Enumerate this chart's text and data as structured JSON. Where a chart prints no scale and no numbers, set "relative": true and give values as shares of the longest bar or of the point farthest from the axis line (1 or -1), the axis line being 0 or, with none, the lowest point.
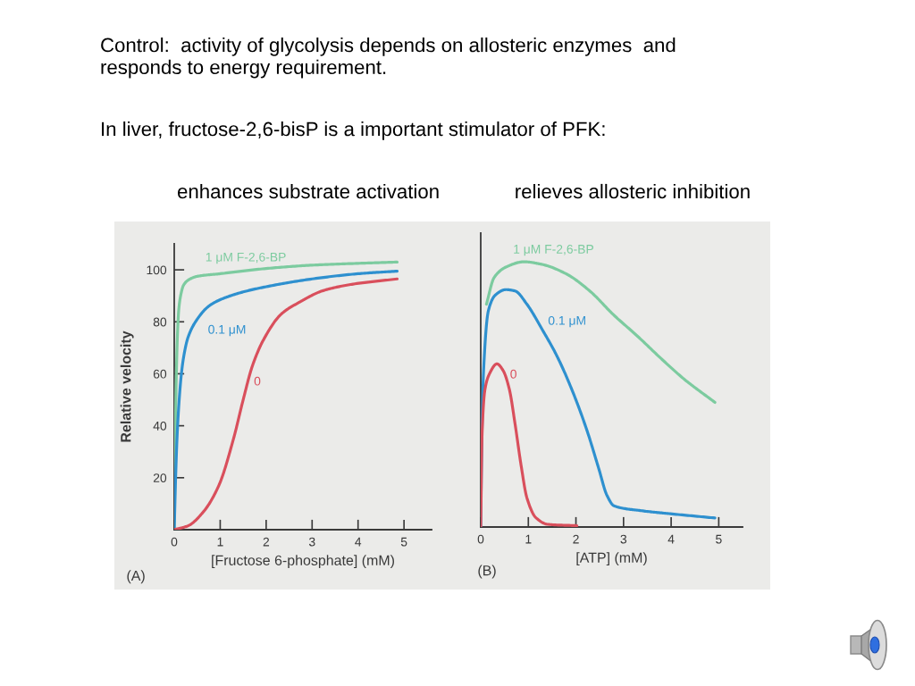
{
  "chart_data": [
    {
      "type": "line",
      "title": "enhances substrate activation",
      "xlabel": "[Fructose 6-phosphate] (mM)",
      "ylabel": "Relative velocity",
      "annotations": [
        "Control:  activity of glycolysis depends on allosteric enzymes  and\nresponds to energy requirement.",
        "In liver, fructose-2,6-bisP is a important stimulator of PFK:",
        "(A)"
      ],
      "xlim": [
        0,
        5.6
      ],
      "ylim": [
        0,
        110
      ],
      "xticks": [
        0,
        1,
        2,
        3,
        4,
        5
      ],
      "yticks": [
        20,
        40,
        60,
        80,
        100
      ],
      "series": [
        {
          "name": "1 μM F-2,6-BP",
          "color": "#7ccb9f",
          "x": [
            0,
            0.02,
            0.04,
            0.07,
            0.1,
            0.15,
            0.2,
            0.3,
            0.5,
            1,
            2,
            3,
            4,
            4.85
          ],
          "values": [
            0,
            30,
            55,
            75,
            85,
            91,
            94,
            96,
            97.5,
            98.5,
            100.5,
            101.8,
            102.5,
            103
          ]
        },
        {
          "name": "0.1 μM",
          "color": "#2e90cf",
          "x": [
            0,
            0.03,
            0.06,
            0.1,
            0.15,
            0.2,
            0.3,
            0.5,
            0.75,
            1,
            1.5,
            2,
            3,
            4,
            4.85
          ],
          "values": [
            0,
            20,
            35,
            48,
            59,
            66,
            74,
            81,
            86,
            88.5,
            91.5,
            93.5,
            96.5,
            98.5,
            99.5
          ]
        },
        {
          "name": "0",
          "color": "#d94f5c",
          "x": [
            0,
            0.3,
            0.64,
            0.97,
            1.29,
            1.5,
            1.7,
            1.94,
            2.33,
            2.72,
            3.24,
            3.89,
            4.85
          ],
          "values": [
            0,
            1.5,
            7,
            17,
            35,
            50,
            63,
            73,
            83,
            87.5,
            92,
            94.5,
            96.5
          ]
        }
      ]
    },
    {
      "type": "line",
      "title": "relieves allosteric inhibition",
      "xlabel": "[ATP] (mM)",
      "relative": true,
      "annotations": [
        "(B)"
      ],
      "xlim": [
        0,
        5.5
      ],
      "xticks": [
        0,
        1,
        2,
        3,
        4,
        5
      ],
      "series": [
        {
          "name": "1 μM F-2,6-BP",
          "color": "#7ccb9f",
          "x": [
            0.12,
            0.28,
            0.53,
            0.91,
            1.29,
            1.79,
            2.29,
            2.79,
            3.29,
            3.79,
            4.29,
            4.92
          ],
          "values": [
            0.84,
            0.94,
            0.98,
            1,
            0.99,
            0.955,
            0.89,
            0.8,
            0.72,
            0.635,
            0.555,
            0.47
          ]
        },
        {
          "name": "0.1 μM",
          "color": "#2e90cf",
          "x": [
            0,
            0.02,
            0.06,
            0.16,
            0.31,
            0.53,
            0.72,
            0.97,
            1.29,
            1.6,
            1.91,
            2.23,
            2.48,
            2.65,
            2.8,
            3.35,
            3.98,
            4.92
          ],
          "values": [
            0,
            0.3,
            0.59,
            0.815,
            0.875,
            0.895,
            0.89,
            0.84,
            0.745,
            0.645,
            0.52,
            0.365,
            0.22,
            0.12,
            0.08,
            0.062,
            0.05,
            0.034
          ]
        },
        {
          "name": "0",
          "color": "#d94f5c",
          "x": [
            0,
            0.03,
            0.09,
            0.19,
            0.34,
            0.47,
            0.6,
            0.72,
            0.85,
            0.97,
            1.16,
            1.41,
            2.02
          ],
          "values": [
            0,
            0.36,
            0.52,
            0.58,
            0.615,
            0.59,
            0.52,
            0.39,
            0.23,
            0.11,
            0.035,
            0.01,
            0.005
          ]
        }
      ]
    }
  ]
}
